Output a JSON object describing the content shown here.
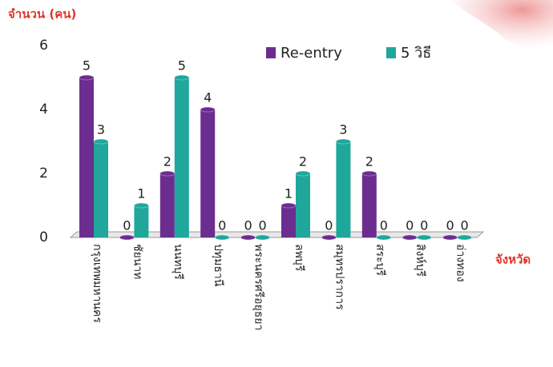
{
  "chart_data": {
    "type": "bar",
    "y_label": "จำนวน (คน)",
    "x_label": "จังหวัด",
    "categories": [
      "กรุงเทพมหานคร",
      "ชัยนาท",
      "นนทบุรี",
      "ปทุมธานี",
      "พระนครศรีอยุธยา",
      "ลพบุรี",
      "สมุทรปราการ",
      "สระบุรี",
      "สิงห์บุรี",
      "อ่างทอง"
    ],
    "series": [
      {
        "name": "Re-entry",
        "color": "#6b2d90",
        "values": [
          5,
          0,
          2,
          4,
          0,
          1,
          0,
          2,
          0,
          0
        ]
      },
      {
        "name": "5 วิธี",
        "color": "#1fa79c",
        "values": [
          3,
          1,
          5,
          0,
          0,
          2,
          3,
          0,
          0,
          0
        ]
      }
    ],
    "ylim": [
      0,
      6
    ],
    "yticks": [
      0,
      2,
      4,
      6
    ]
  }
}
